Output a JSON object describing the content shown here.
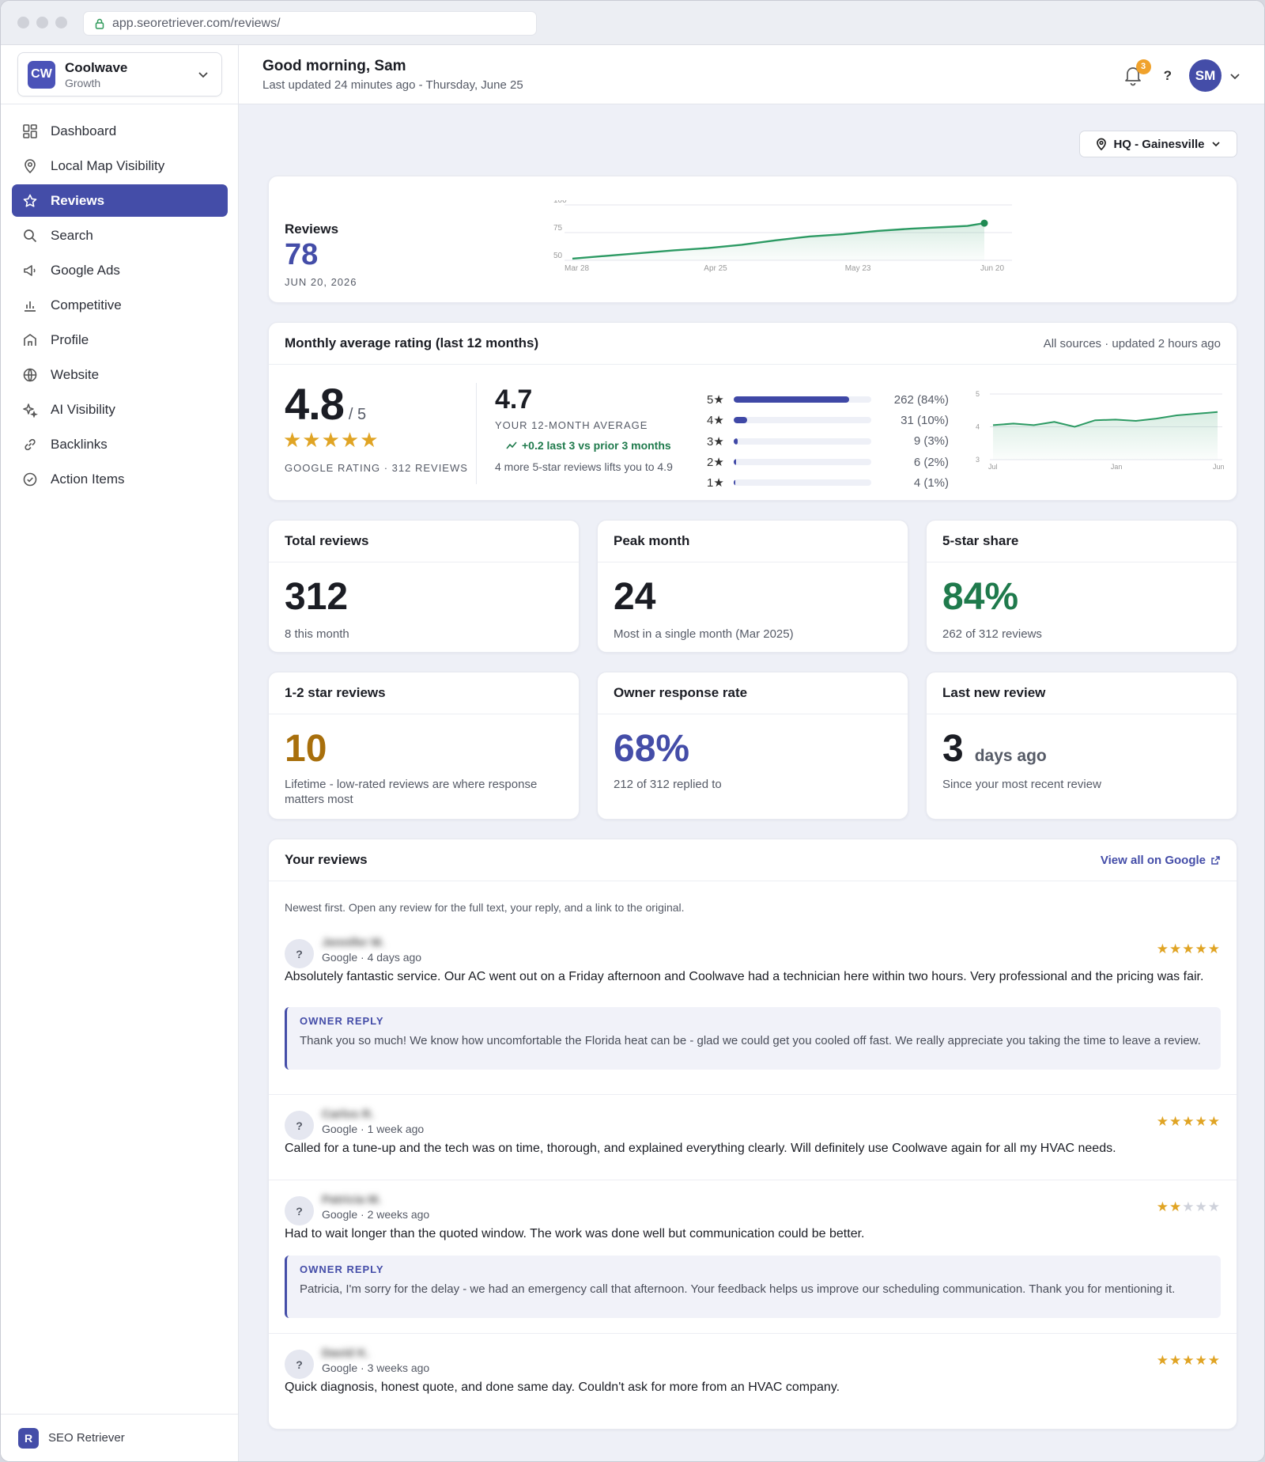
{
  "browser": {
    "url": "app.seoretriever.com/reviews/"
  },
  "org": {
    "initials": "CW",
    "name": "Coolwave",
    "plan": "Growth"
  },
  "nav": [
    {
      "label": "Dashboard",
      "icon": "grid-icon"
    },
    {
      "label": "Local Map Visibility",
      "icon": "map-pin-icon"
    },
    {
      "label": "Reviews",
      "icon": "star-icon",
      "active": true
    },
    {
      "label": "Search",
      "icon": "search-icon"
    },
    {
      "label": "Google Ads",
      "icon": "megaphone-icon"
    },
    {
      "label": "Competitive",
      "icon": "bar-chart-icon"
    },
    {
      "label": "Profile",
      "icon": "storefront-icon"
    },
    {
      "label": "Website",
      "icon": "globe-icon"
    },
    {
      "label": "AI Visibility",
      "icon": "sparkles-icon"
    },
    {
      "label": "Backlinks",
      "icon": "link-icon"
    },
    {
      "label": "Action Items",
      "icon": "check-circle-icon"
    }
  ],
  "footer": {
    "logo": "R",
    "name": "SEO Retriever"
  },
  "header": {
    "greeting": "Good morning, Sam",
    "updated": "Last updated 24 minutes ago - Thursday, June 25",
    "notifications": "3",
    "help": "?",
    "avatar": "SM"
  },
  "location": {
    "label": "HQ - Gainesville"
  },
  "reviews_card": {
    "title": "Reviews",
    "value": "78",
    "date": "JUN 20, 2026"
  },
  "rating": {
    "title": "Monthly average rating (last 12 months)",
    "sources": "All sources · updated 2 hours ago",
    "value": "4.8",
    "outof": "/ 5",
    "stars": "★★★★★",
    "caption": "GOOGLE RATING · 312 REVIEWS",
    "avg": "4.7",
    "avg_label": "YOUR 12-MONTH AVERAGE",
    "trend": "+0.2 last 3 vs prior 3 months",
    "tip": "4 more 5-star reviews lifts you to 4.9",
    "dist": [
      {
        "star": "5★",
        "count": "262 (84%)",
        "share": 0.84
      },
      {
        "star": "4★",
        "count": "31 (10%)",
        "share": 0.1
      },
      {
        "star": "3★",
        "count": "9 (3%)",
        "share": 0.03
      },
      {
        "star": "2★",
        "count": "6 (2%)",
        "share": 0.02
      },
      {
        "star": "1★",
        "count": "4 (1%)",
        "share": 0.01
      }
    ]
  },
  "kpis": [
    {
      "label": "Total reviews",
      "value": "312",
      "sub": "8 this month",
      "color": "#1b1d24"
    },
    {
      "label": "Peak month",
      "value": "24",
      "sub": "Most in a single month (Mar 2025)",
      "color": "#1b1d24"
    },
    {
      "label": "5-star share",
      "value": "84%",
      "sub": "262 of 312 reviews",
      "color": "#1f7a4c"
    },
    {
      "label": "1-2 star reviews",
      "value": "10",
      "sub": "Lifetime - low-rated reviews are where response matters most",
      "color": "#a86f0c"
    },
    {
      "label": "Owner response rate",
      "value": "68%",
      "sub": "212 of 312 replied to",
      "color": "#444da8"
    },
    {
      "label": "Last new review",
      "value": "3",
      "unit": "days ago",
      "sub": "Since your most recent review",
      "color": "#1b1d24"
    }
  ],
  "your_reviews": {
    "title": "Your reviews",
    "link": "View all on Google",
    "intro": "Newest first. Open any review for the full text, your reply, and a link to the original.",
    "items": [
      {
        "avatar": "?",
        "name": "Jennifer M.",
        "meta": "Google · 4 days ago",
        "rating": 5,
        "text": "Absolutely fantastic service. Our AC went out on a Friday afternoon and Coolwave had a technician here within two hours. Very professional and the pricing was fair.",
        "reply_label": "OWNER REPLY",
        "reply": "Thank you so much! We know how uncomfortable the Florida heat can be - glad we could get you cooled off fast. We really appreciate you taking the time to leave a review."
      },
      {
        "avatar": "?",
        "name": "Carlos R.",
        "meta": "Google · 1 week ago",
        "rating": 5,
        "text": "Called for a tune-up and the tech was on time, thorough, and explained everything clearly. Will definitely use Coolwave again for all my HVAC needs."
      },
      {
        "avatar": "?",
        "name": "Patricia M.",
        "meta": "Google · 2 weeks ago",
        "rating": 2,
        "text": "Had to wait longer than the quoted window. The work was done well but communication could be better.",
        "reply_label": "OWNER REPLY",
        "reply": "Patricia, I'm sorry for the delay - we had an emergency call that afternoon. Your feedback helps us improve our scheduling communication. Thank you for mentioning it."
      },
      {
        "avatar": "?",
        "name": "David K.",
        "meta": "Google · 3 weeks ago",
        "rating": 5,
        "text": "Quick diagnosis, honest quote, and done same day. Couldn't ask for more from an HVAC company."
      }
    ]
  },
  "chart_data": [
    {
      "type": "area",
      "title": "",
      "x": [
        "Mar 28",
        "Apr 25",
        "May 23",
        "Jun 20"
      ],
      "x_ticks": [
        "Mar 28",
        "Apr 25",
        "May 23",
        "Jun 20"
      ],
      "y_ticks": [
        "100",
        "75",
        "50"
      ],
      "ylim": [
        50,
        100
      ],
      "points": [
        [
          0,
          51.5
        ],
        [
          12,
          54
        ],
        [
          24,
          56.5
        ],
        [
          36,
          59
        ],
        [
          48,
          61
        ],
        [
          60,
          64
        ],
        [
          72,
          68
        ],
        [
          84,
          71.5
        ],
        [
          96,
          73.5
        ],
        [
          108,
          76.5
        ],
        [
          120,
          78.5
        ],
        [
          132,
          80
        ],
        [
          140,
          81
        ],
        [
          146,
          83.5
        ]
      ],
      "series_color": "#2c9a63"
    },
    {
      "type": "area",
      "title": "",
      "x": [
        "Jul",
        "Aug",
        "Sep",
        "Oct",
        "Nov",
        "Dec",
        "Jan",
        "Feb",
        "Mar",
        "Apr",
        "May",
        "Jun"
      ],
      "x_ticks": [
        "Jul",
        "Jan",
        "Jun"
      ],
      "y_ticks": [
        "5",
        "4",
        "3"
      ],
      "ylim": [
        3,
        5
      ],
      "values": [
        4.05,
        4.1,
        4.05,
        4.15,
        4.0,
        4.2,
        4.22,
        4.18,
        4.25,
        4.35,
        4.4,
        4.45
      ],
      "series_color": "#2c9a63"
    }
  ]
}
